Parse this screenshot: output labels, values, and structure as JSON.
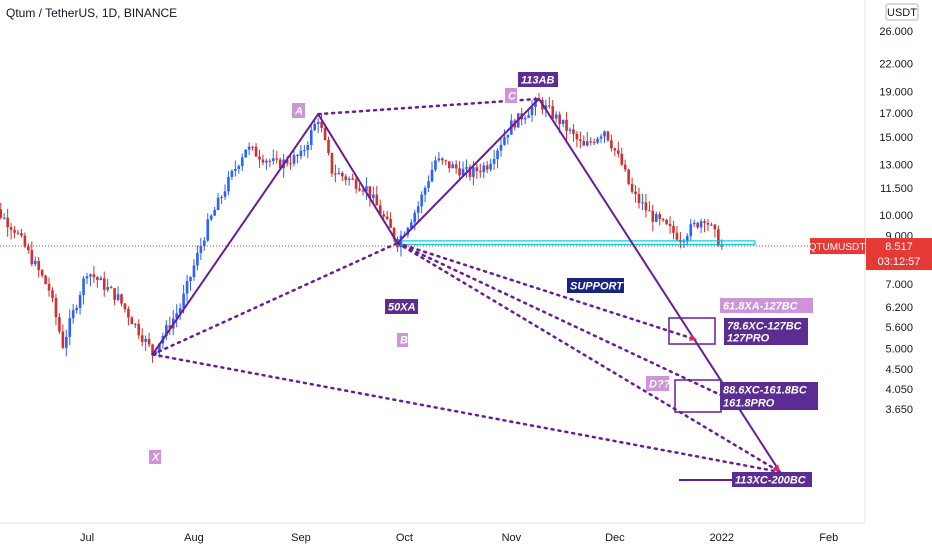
{
  "header": {
    "title": "Qtum / TetherUS, 1D, BINANCE",
    "currency": "USDT"
  },
  "chart_data": {
    "type": "candlestick",
    "symbol": "QTUMUSDT",
    "last_price": "8.517",
    "countdown": "03:12:57",
    "y_ticks": [
      "26.000",
      "22.000",
      "19.000",
      "17.000",
      "15.000",
      "13.000",
      "11.500",
      "10.000",
      "9.000",
      "7.000",
      "6.200",
      "5.600",
      "5.000",
      "4.500",
      "4.050",
      "3.650"
    ],
    "x_ticks": [
      "Jul",
      "Aug",
      "Sep",
      "Oct",
      "Nov",
      "Dec",
      "2022",
      "Feb"
    ],
    "pattern_points": [
      {
        "label": "X",
        "date": "2021-07-20",
        "price": 4.85
      },
      {
        "label": "A",
        "date": "2021-09-06",
        "price": 16.9
      },
      {
        "label": "B",
        "date": "2021-09-29",
        "price": 8.65
      },
      {
        "label": "C",
        "date": "2021-11-09",
        "price": 18.3
      }
    ],
    "annotations": [
      {
        "text": "113AB",
        "color": "#5b2c91"
      },
      {
        "text": "50XA",
        "color": "#5b2c91"
      },
      {
        "text": "SUPPORT",
        "color": "#1a237e"
      },
      {
        "text": "61.8XA-127BC",
        "color": "#ce93d8"
      },
      {
        "text": "78.6XC-127BC",
        "color": "#5b2c91"
      },
      {
        "text": "127PRO",
        "color": "#5b2c91"
      },
      {
        "text": "88.6XC-161.8BC",
        "color": "#5b2c91"
      },
      {
        "text": "161.8PRO",
        "color": "#5b2c91"
      },
      {
        "text": "113XC-200BC",
        "color": "#5b2c91"
      },
      {
        "text": "D??",
        "color": "#ce93d8"
      },
      {
        "text": "A",
        "color": "#ce93d8"
      },
      {
        "text": "B",
        "color": "#ce93d8"
      },
      {
        "text": "C",
        "color": "#ce93d8"
      },
      {
        "text": "X",
        "color": "#ce93d8"
      }
    ],
    "colors": {
      "up": "#2962ff",
      "down": "#d32f2f",
      "pattern": "#6a1b9a",
      "support": "#00bcd4",
      "price_tag": "#e53935"
    }
  }
}
